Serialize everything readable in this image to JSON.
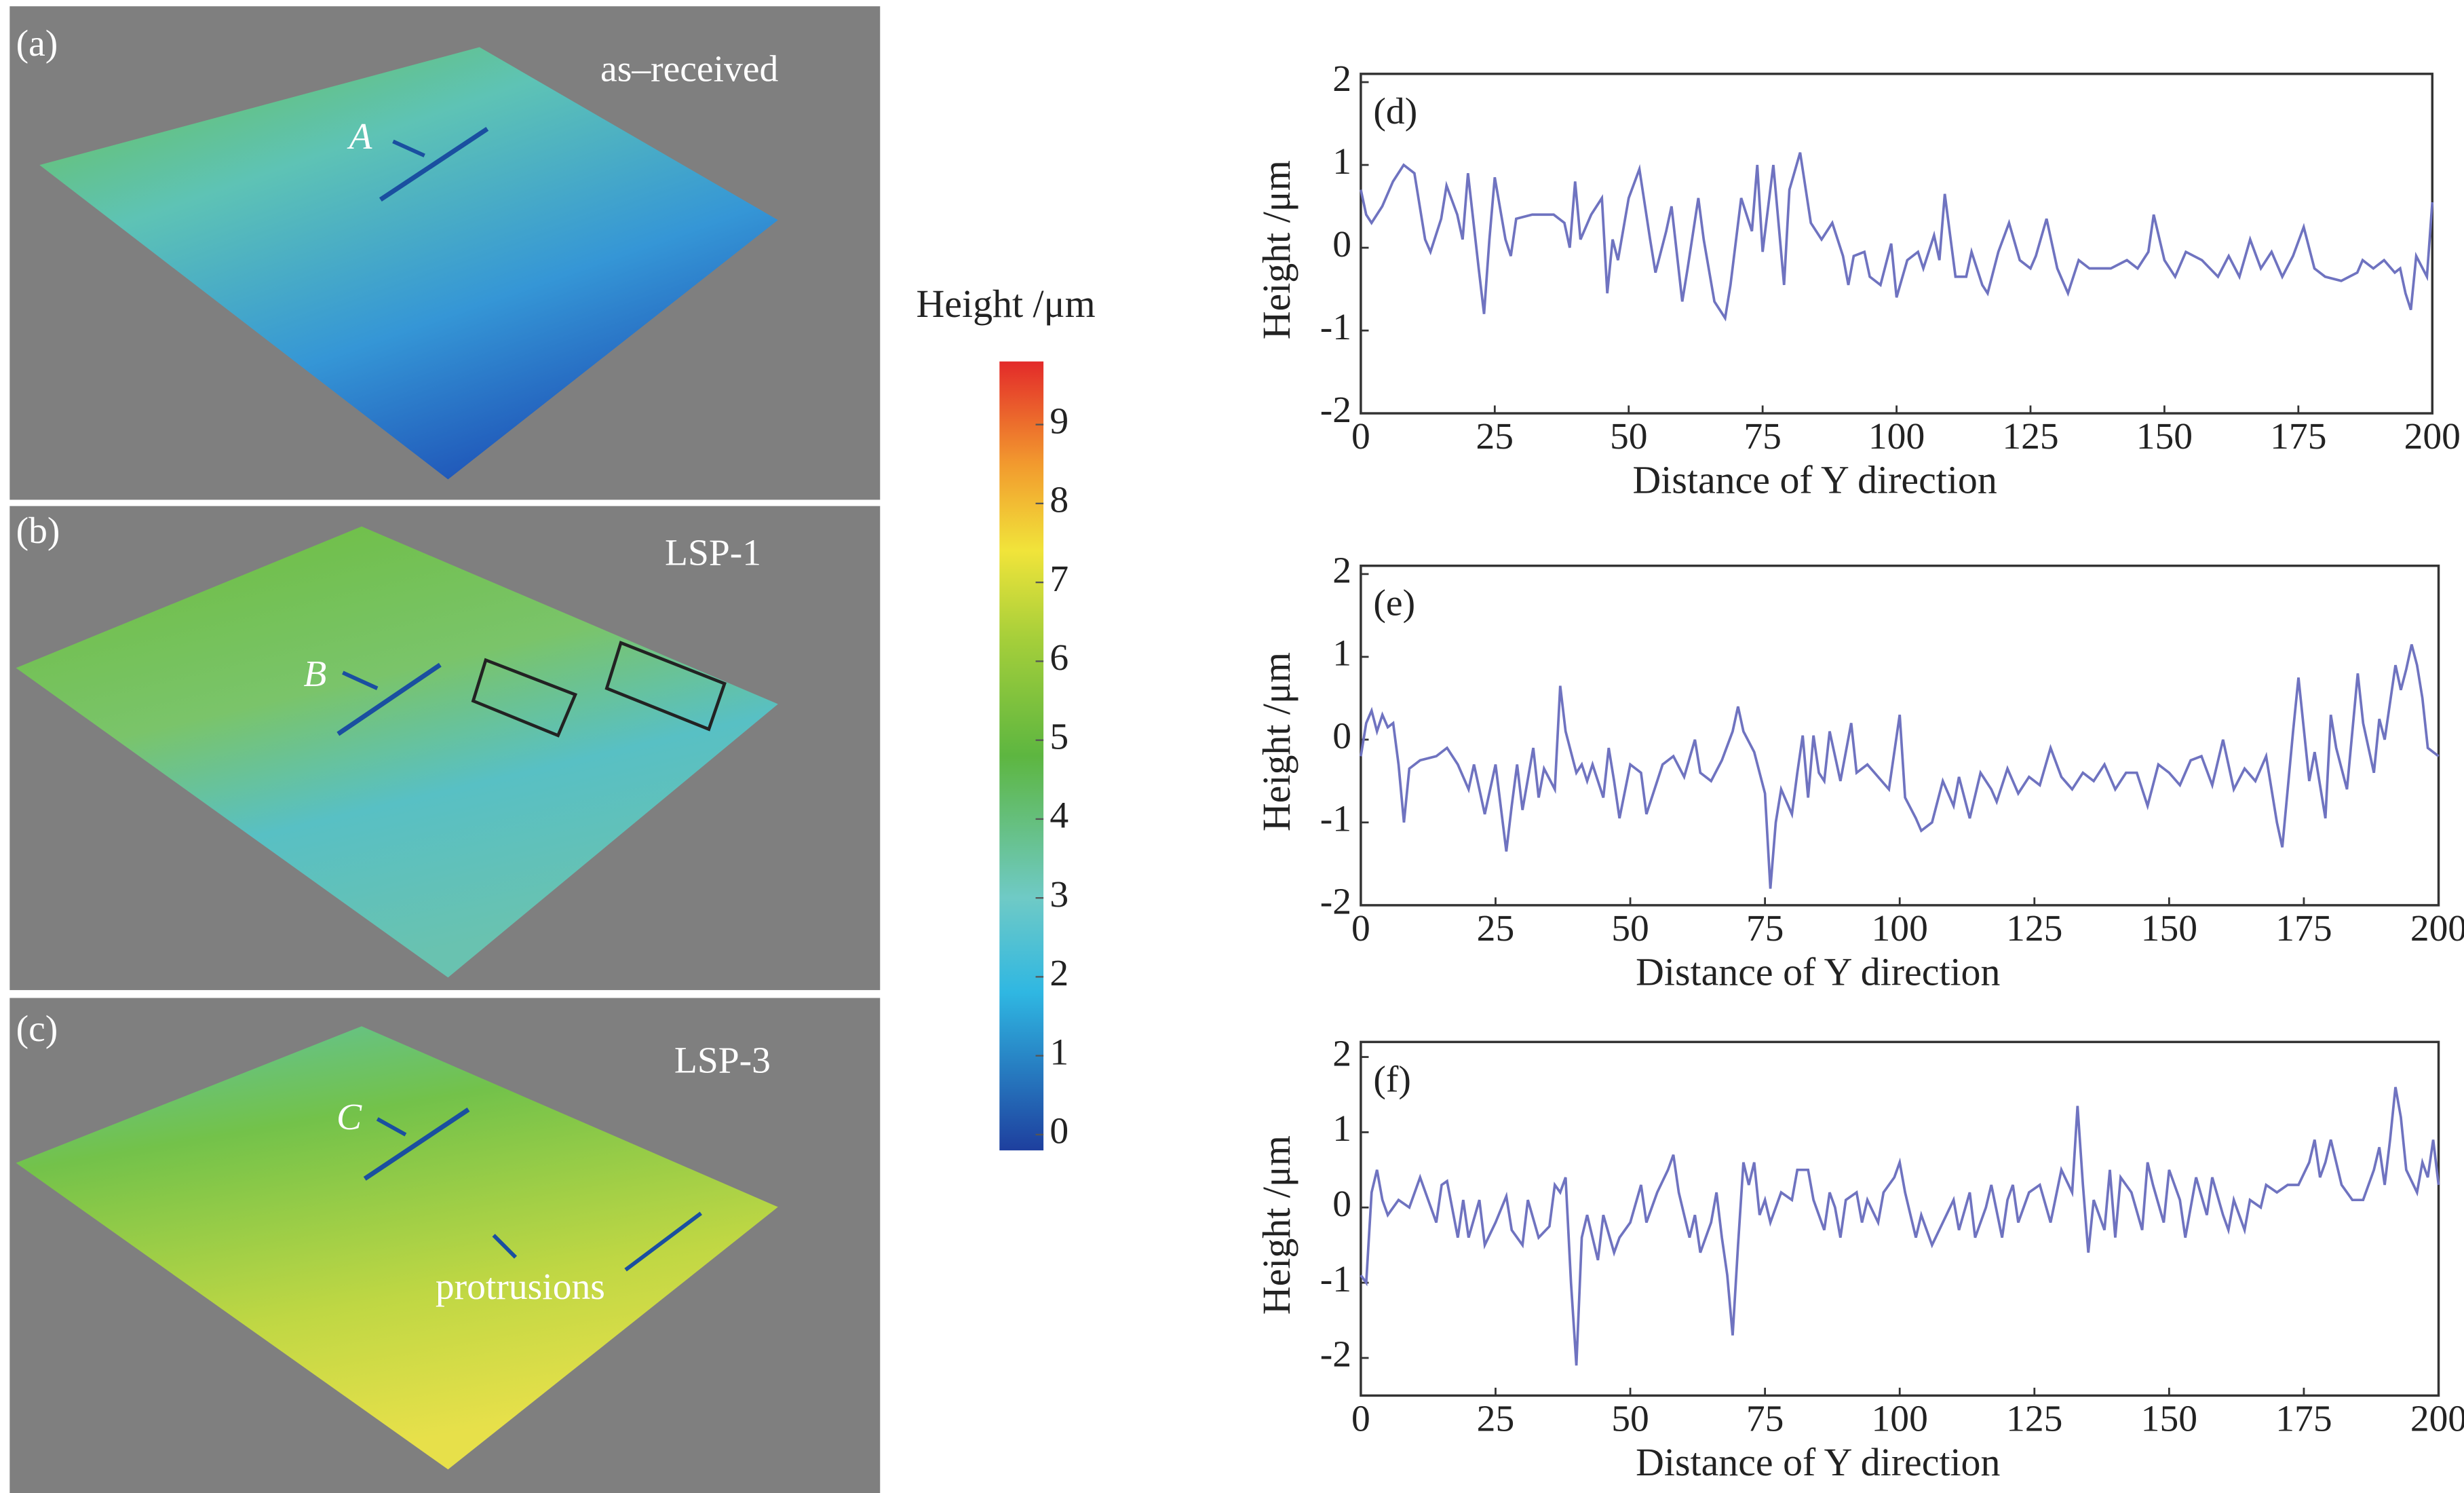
{
  "surfaces": [
    {
      "label": "(a)",
      "caption": "as–received",
      "marker": "A"
    },
    {
      "label": "(b)",
      "caption": "LSP-1",
      "marker": "B"
    },
    {
      "label": "(c)",
      "caption": "LSP-3",
      "marker": "C",
      "annotation": "protrusions"
    }
  ],
  "colorbar": {
    "title": "Height /μm",
    "lim": [
      -0.2,
      9.8
    ],
    "ticks": [
      0,
      1,
      2,
      3,
      4,
      5,
      6,
      7,
      8,
      9
    ]
  },
  "chart_data": [
    {
      "type": "line",
      "label": "(d)",
      "x_label": "Distance of Y direction",
      "y_label": "Height /μm",
      "color": "#6f73c0",
      "xlim": [
        0,
        200
      ],
      "ylim": [
        -2,
        2.1
      ],
      "xticks": [
        0,
        25,
        50,
        75,
        100,
        125,
        150,
        175,
        200
      ],
      "yticks": [
        -2,
        -1,
        0,
        1,
        2
      ],
      "x": [
        0,
        1,
        2,
        4,
        6,
        8,
        10,
        12,
        13,
        15,
        16,
        18,
        19,
        20,
        22,
        23,
        24,
        25,
        27,
        28,
        29,
        32,
        36,
        38,
        39,
        40,
        41,
        43,
        45,
        46,
        47,
        48,
        50,
        52,
        54,
        55,
        57,
        58,
        60,
        61,
        63,
        64,
        66,
        68,
        69,
        71,
        73,
        74,
        75,
        77,
        79,
        80,
        82,
        84,
        86,
        88,
        90,
        91,
        92,
        94,
        95,
        97,
        99,
        100,
        102,
        104,
        105,
        107,
        108,
        109,
        111,
        113,
        114,
        116,
        117,
        119,
        121,
        123,
        125,
        126,
        128,
        130,
        132,
        134,
        136,
        140,
        143,
        145,
        147,
        148,
        150,
        152,
        154,
        157,
        160,
        162,
        164,
        166,
        168,
        170,
        172,
        174,
        176,
        178,
        180,
        183,
        186,
        187,
        189,
        191,
        193,
        194,
        195,
        196,
        197,
        199,
        200
      ],
      "values": [
        0.7,
        0.4,
        0.3,
        0.5,
        0.8,
        1.0,
        0.9,
        0.1,
        -0.05,
        0.35,
        0.75,
        0.4,
        0.1,
        0.9,
        -0.25,
        -0.8,
        0.1,
        0.85,
        0.1,
        -0.1,
        0.35,
        0.4,
        0.4,
        0.3,
        0,
        0.8,
        0.1,
        0.4,
        0.6,
        -0.55,
        0.1,
        -0.15,
        0.6,
        0.95,
        0.1,
        -0.3,
        0.2,
        0.5,
        -0.65,
        -0.25,
        0.6,
        0.1,
        -0.65,
        -0.85,
        -0.45,
        0.6,
        0.2,
        1.0,
        -0.05,
        1.0,
        -0.45,
        0.7,
        1.15,
        0.3,
        0.1,
        0.3,
        -0.1,
        -0.45,
        -0.1,
        -0.05,
        -0.35,
        -0.45,
        0.05,
        -0.6,
        -0.15,
        -0.05,
        -0.25,
        0.15,
        -0.15,
        0.65,
        -0.35,
        -0.35,
        -0.05,
        -0.45,
        -0.55,
        -0.05,
        0.3,
        -0.15,
        -0.25,
        -0.1,
        0.35,
        -0.25,
        -0.55,
        -0.15,
        -0.25,
        -0.25,
        -0.15,
        -0.25,
        -0.05,
        0.4,
        -0.15,
        -0.35,
        -0.05,
        -0.15,
        -0.35,
        -0.1,
        -0.35,
        0.1,
        -0.25,
        -0.05,
        -0.35,
        -0.1,
        0.25,
        -0.25,
        -0.35,
        -0.4,
        -0.3,
        -0.15,
        -0.25,
        -0.15,
        -0.3,
        -0.25,
        -0.55,
        -0.75,
        -0.1,
        -0.35,
        0.55
      ]
    },
    {
      "type": "line",
      "label": "(e)",
      "x_label": "Distance of Y direction",
      "y_label": "Height /μm",
      "color": "#6f73c0",
      "xlim": [
        0,
        200
      ],
      "ylim": [
        -2,
        2.1
      ],
      "xticks": [
        0,
        25,
        50,
        75,
        100,
        125,
        150,
        175,
        200
      ],
      "yticks": [
        -2,
        -1,
        0,
        1,
        2
      ],
      "x": [
        0,
        1,
        2,
        3,
        4,
        5,
        6,
        7,
        8,
        9,
        11,
        14,
        16,
        18,
        20,
        21,
        23,
        25,
        27,
        28,
        29,
        30,
        32,
        33,
        34,
        36,
        37,
        38,
        40,
        41,
        42,
        43,
        45,
        46,
        47,
        48,
        50,
        52,
        53,
        55,
        56,
        58,
        60,
        62,
        63,
        65,
        67,
        69,
        70,
        71,
        73,
        75,
        76,
        77,
        78,
        80,
        81,
        82,
        83,
        84,
        85,
        86,
        87,
        88,
        89,
        91,
        92,
        94,
        96,
        98,
        100,
        101,
        103,
        104,
        106,
        108,
        110,
        111,
        113,
        115,
        117,
        118,
        120,
        122,
        124,
        126,
        128,
        130,
        132,
        134,
        136,
        138,
        140,
        142,
        144,
        146,
        148,
        150,
        152,
        154,
        156,
        158,
        160,
        162,
        164,
        166,
        168,
        170,
        171,
        173,
        174,
        176,
        177,
        179,
        180,
        181,
        183,
        185,
        186,
        188,
        189,
        190,
        192,
        193,
        194,
        195,
        196,
        197,
        198,
        200
      ],
      "values": [
        -0.2,
        0.2,
        0.35,
        0.1,
        0.3,
        0.15,
        0.2,
        -0.3,
        -1.0,
        -0.35,
        -0.25,
        -0.2,
        -0.1,
        -0.3,
        -0.6,
        -0.3,
        -0.9,
        -0.3,
        -1.35,
        -0.8,
        -0.3,
        -0.85,
        -0.1,
        -0.7,
        -0.35,
        -0.6,
        0.65,
        0.1,
        -0.4,
        -0.3,
        -0.5,
        -0.3,
        -0.7,
        -0.1,
        -0.5,
        -0.95,
        -0.3,
        -0.4,
        -0.9,
        -0.5,
        -0.3,
        -0.2,
        -0.45,
        0,
        -0.4,
        -0.5,
        -0.25,
        0.1,
        0.4,
        0.1,
        -0.15,
        -0.65,
        -1.8,
        -1.0,
        -0.6,
        -0.9,
        -0.4,
        0.05,
        -0.7,
        0.05,
        -0.4,
        -0.5,
        0.1,
        -0.2,
        -0.5,
        0.2,
        -0.4,
        -0.3,
        -0.45,
        -0.6,
        0.3,
        -0.7,
        -0.95,
        -1.1,
        -1.0,
        -0.5,
        -0.8,
        -0.45,
        -0.95,
        -0.4,
        -0.6,
        -0.75,
        -0.35,
        -0.65,
        -0.45,
        -0.55,
        -0.1,
        -0.45,
        -0.6,
        -0.4,
        -0.5,
        -0.3,
        -0.6,
        -0.4,
        -0.4,
        -0.8,
        -0.3,
        -0.4,
        -0.55,
        -0.25,
        -0.2,
        -0.55,
        0,
        -0.6,
        -0.35,
        -0.5,
        -0.2,
        -1.0,
        -1.3,
        0.1,
        0.75,
        -0.5,
        -0.15,
        -0.95,
        0.3,
        -0.1,
        -0.6,
        0.8,
        0.2,
        -0.4,
        0.25,
        0,
        0.9,
        0.6,
        0.85,
        1.15,
        0.9,
        0.5,
        -0.1,
        -0.2
      ]
    },
    {
      "type": "line",
      "label": "(f)",
      "x_label": "Distance of Y direction",
      "y_label": "Height /μm",
      "color": "#6f73c0",
      "xlim": [
        0,
        200
      ],
      "ylim": [
        -2.5,
        2.2
      ],
      "xticks": [
        0,
        25,
        50,
        75,
        100,
        125,
        150,
        175,
        200
      ],
      "yticks": [
        -2,
        -1,
        0,
        1,
        2
      ],
      "x": [
        0,
        1,
        2,
        3,
        4,
        5,
        7,
        9,
        11,
        12,
        14,
        15,
        16,
        18,
        19,
        20,
        22,
        23,
        25,
        27,
        28,
        30,
        31,
        33,
        35,
        36,
        37,
        38,
        39,
        40,
        41,
        42,
        44,
        45,
        47,
        48,
        50,
        52,
        53,
        55,
        57,
        58,
        59,
        61,
        62,
        63,
        65,
        66,
        67,
        68,
        69,
        70,
        71,
        72,
        73,
        74,
        75,
        76,
        77,
        78,
        80,
        81,
        83,
        84,
        86,
        87,
        88,
        89,
        90,
        92,
        93,
        94,
        96,
        97,
        99,
        100,
        101,
        103,
        104,
        106,
        108,
        110,
        111,
        113,
        114,
        116,
        117,
        119,
        120,
        121,
        122,
        124,
        126,
        128,
        130,
        132,
        133,
        134,
        135,
        136,
        138,
        139,
        140,
        141,
        143,
        145,
        146,
        147,
        149,
        150,
        152,
        153,
        155,
        157,
        158,
        160,
        161,
        162,
        164,
        165,
        167,
        168,
        170,
        172,
        174,
        176,
        177,
        178,
        179,
        180,
        182,
        184,
        186,
        188,
        189,
        190,
        191,
        192,
        193,
        194,
        196,
        197,
        198,
        199,
        200
      ],
      "values": [
        -0.9,
        -1.0,
        0.2,
        0.5,
        0.1,
        -0.1,
        0.1,
        0.0,
        0.4,
        0.2,
        -0.2,
        0.3,
        0.35,
        -0.4,
        0.1,
        -0.4,
        0.1,
        -0.5,
        -0.2,
        0.15,
        -0.3,
        -0.5,
        0.1,
        -0.4,
        -0.25,
        0.3,
        0.2,
        0.4,
        -1.0,
        -2.1,
        -0.4,
        -0.1,
        -0.7,
        -0.1,
        -0.6,
        -0.4,
        -0.2,
        0.3,
        -0.2,
        0.2,
        0.5,
        0.7,
        0.2,
        -0.4,
        -0.1,
        -0.6,
        -0.2,
        0.2,
        -0.4,
        -0.9,
        -1.7,
        -0.5,
        0.6,
        0.3,
        0.6,
        -0.1,
        0.1,
        -0.2,
        0,
        0.2,
        0.1,
        0.5,
        0.5,
        0.1,
        -0.3,
        0.2,
        0.0,
        -0.4,
        0.1,
        0.2,
        -0.2,
        0.1,
        -0.2,
        0.2,
        0.4,
        0.6,
        0.2,
        -0.4,
        -0.1,
        -0.5,
        -0.2,
        0.1,
        -0.3,
        0.2,
        -0.4,
        0,
        0.3,
        -0.4,
        0.1,
        0.3,
        -0.2,
        0.2,
        0.3,
        -0.2,
        0.5,
        0.2,
        1.35,
        0.3,
        -0.6,
        0.1,
        -0.3,
        0.5,
        -0.4,
        0.4,
        0.2,
        -0.3,
        0.6,
        0.3,
        -0.2,
        0.5,
        0.1,
        -0.4,
        0.4,
        -0.1,
        0.4,
        -0.1,
        -0.3,
        0.1,
        -0.3,
        0.1,
        0,
        0.3,
        0.2,
        0.3,
        0.3,
        0.6,
        0.9,
        0.4,
        0.6,
        0.9,
        0.3,
        0.1,
        0.1,
        0.5,
        0.8,
        0.3,
        0.9,
        1.6,
        1.2,
        0.5,
        0.2,
        0.6,
        0.4,
        0.9,
        0.3
      ]
    }
  ]
}
